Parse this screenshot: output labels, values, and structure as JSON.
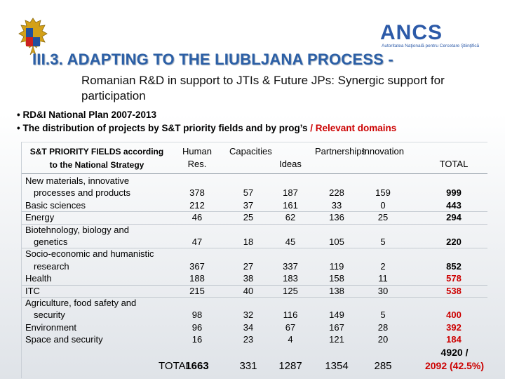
{
  "logo": {
    "brand": "ANCS",
    "tagline": "Autoritatea Naţională pentru Cercetare Ştiinţifică",
    "emblem": "romanian-coat-of-arms-icon"
  },
  "title": "III.3. ADAPTING TO THE LIUBLJANA PROCESS -",
  "subtitle": "Romanian R&D in support to JTIs & Future JPs: Synergic support for participation",
  "bullets": {
    "b1": "• RD&I National Plan 2007-2013",
    "b2_main": "• The distribution of projects by S&T priority fields and by prog’s",
    "b2_red": " / Relevant domains"
  },
  "colors": {
    "title": "#2b5fa6",
    "accent_red": "#cc0000",
    "ancs_blue": "#2c5aa8"
  },
  "table": {
    "headers": {
      "field": "S&T PRIORITY FIELDS according to the National Strategy",
      "human": "Human Res.",
      "capacities": "Capacities",
      "ideas": "Ideas",
      "partnerships": "Partnerships",
      "innovation": "Innovation",
      "total": "TOTAL"
    },
    "labels": [
      "New materials, innovative",
      "processes and products",
      "Basic sciences",
      "Energy",
      "Biotehnology, biology and",
      "genetics",
      "Socio-economic and humanistic",
      "research",
      "Health",
      "ITC",
      "Agriculture, food safety and",
      "security",
      "Environment",
      "Space and  security"
    ],
    "rows": [
      {
        "human": "378",
        "cap": "57",
        "ideas": "187",
        "part": "228",
        "innov": "159",
        "total": "999",
        "red": false
      },
      {
        "human": "212",
        "cap": "37",
        "ideas": "161",
        "part": "33",
        "innov": "0",
        "total": "443",
        "red": false
      },
      {
        "human": "46",
        "cap": "25",
        "ideas": "62",
        "part": "136",
        "innov": "25",
        "total": "294",
        "red": false
      },
      {
        "human": "47",
        "cap": "18",
        "ideas": "45",
        "part": "105",
        "innov": "5",
        "total": "220",
        "red": false
      },
      {
        "human": "367",
        "cap": "27",
        "ideas": "337",
        "part": "119",
        "innov": "2",
        "total": "852",
        "red": false
      },
      {
        "human": "188",
        "cap": "38",
        "ideas": "183",
        "part": "158",
        "innov": "11",
        "total": "578",
        "red": true
      },
      {
        "human": "215",
        "cap": "40",
        "ideas": "125",
        "part": "138",
        "innov": "30",
        "total": "538",
        "red": true
      },
      {
        "human": "98",
        "cap": "32",
        "ideas": "116",
        "part": "149",
        "innov": "5",
        "total": "400",
        "red": true
      },
      {
        "human": "96",
        "cap": "34",
        "ideas": "67",
        "part": "167",
        "innov": "28",
        "total": "392",
        "red": true
      },
      {
        "human": "16",
        "cap": "23",
        "ideas": "4",
        "part": "121",
        "innov": "20",
        "total": "184",
        "red": true
      }
    ],
    "footer": {
      "label": "TOTAL",
      "human": "1663",
      "cap": "331",
      "ideas": "1287",
      "part": "1354",
      "innov": "285",
      "total_line1": "4920 /",
      "total_line2": "2092 (42.5%)"
    }
  }
}
